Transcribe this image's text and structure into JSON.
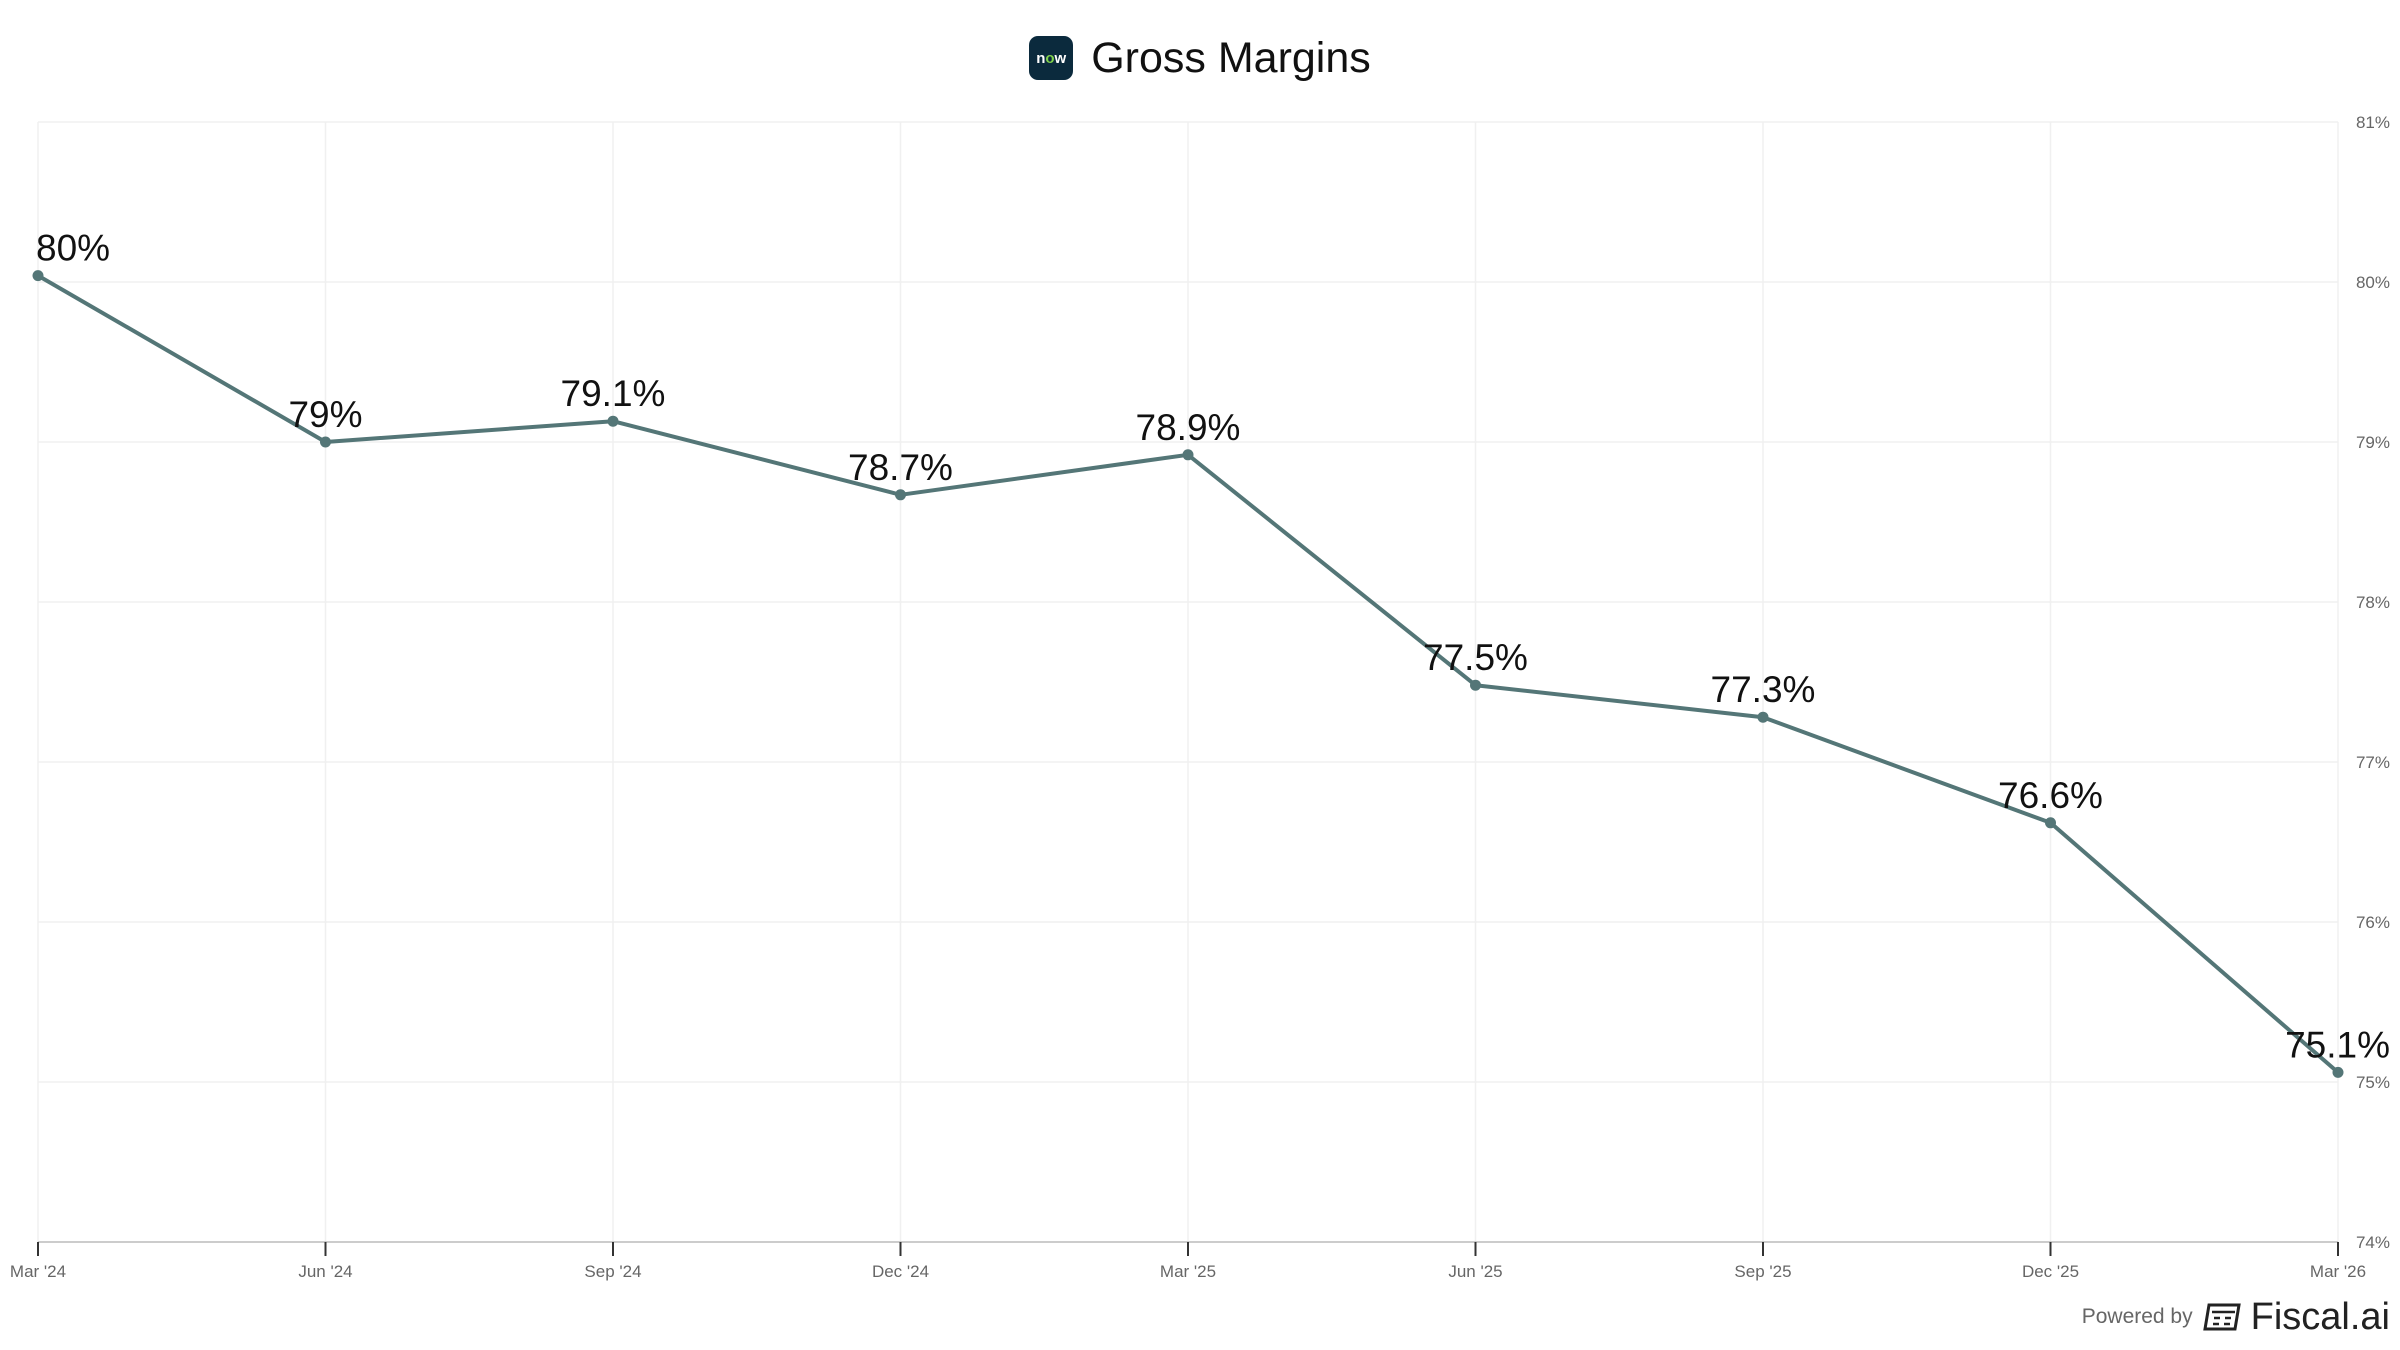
{
  "header": {
    "logo_text": "now",
    "title": "Gross Margins"
  },
  "footer": {
    "powered_by": "Powered by",
    "brand": "Fiscal.ai"
  },
  "colors": {
    "line": "#547677",
    "grid": "#f0f0f0",
    "axis": "#cccccc",
    "tick_label": "#666666",
    "data_label": "#111111",
    "logo_bg": "#0b2a3d"
  },
  "chart_data": {
    "type": "line",
    "title": "Gross Margins",
    "categories": [
      "Mar '24",
      "Jun '24",
      "Sep '24",
      "Dec '24",
      "Mar '25",
      "Jun '25",
      "Sep '25",
      "Dec '25",
      "Mar '26"
    ],
    "series": [
      {
        "values": [
          80.04,
          79.0,
          79.13,
          78.67,
          78.92,
          77.48,
          77.28,
          76.62,
          75.06
        ],
        "labels": [
          "80%",
          "79%",
          "79.1%",
          "78.7%",
          "78.9%",
          "77.5%",
          "77.3%",
          "76.6%",
          "75.1%"
        ]
      }
    ],
    "ylim": [
      74,
      81
    ],
    "yticks": [
      74,
      75,
      76,
      77,
      78,
      79,
      80,
      81
    ],
    "ytick_labels": [
      "74%",
      "75%",
      "76%",
      "77%",
      "78%",
      "79%",
      "80%",
      "81%"
    ],
    "y_axis_side": "right",
    "grid": true,
    "legend": "none"
  }
}
